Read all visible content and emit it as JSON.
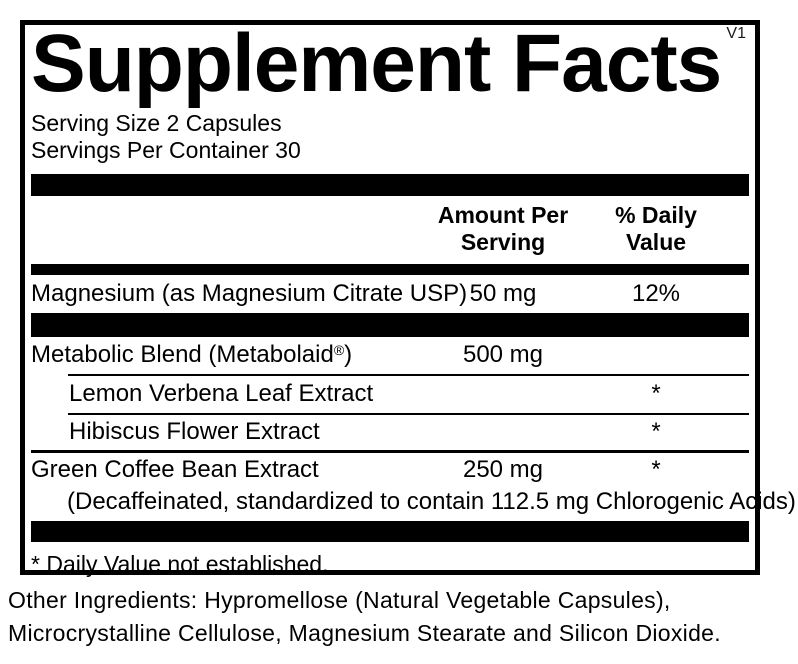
{
  "panel": {
    "version": "V1",
    "title": "Supplement Facts",
    "serving_size": "Serving Size 2 Capsules",
    "servings_per_container": "Servings Per Container 30",
    "columns": {
      "amount": "Amount Per\nServing",
      "daily_value": "% Daily\nValue"
    },
    "rows": [
      {
        "name": "Magnesium (as Magnesium Citrate USP)",
        "amount": "50 mg",
        "dv": "12%"
      },
      {
        "name_prefix": "Metabolic Blend (Metabolaid",
        "reg_mark": "®",
        "name_suffix": ")",
        "amount": "500 mg",
        "dv": ""
      },
      {
        "name": "Lemon Verbena Leaf Extract",
        "amount": "",
        "dv": "*"
      },
      {
        "name": "Hibiscus Flower Extract",
        "amount": "",
        "dv": "*"
      },
      {
        "name": "Green Coffee Bean Extract",
        "amount": "250 mg",
        "dv": "*",
        "note": "(Decaffeinated, standardized to contain 112.5 mg Chlorogenic Acids)"
      }
    ],
    "footnote": "* Daily Value not established."
  },
  "other_ingredients": "Other Ingredients: Hypromellose (Natural Vegetable Capsules),\nMicrocrystalline Cellulose, Magnesium Stearate and Silicon Dioxide.",
  "colors": {
    "text": "#000000",
    "bar": "#000000",
    "background": "#ffffff"
  }
}
